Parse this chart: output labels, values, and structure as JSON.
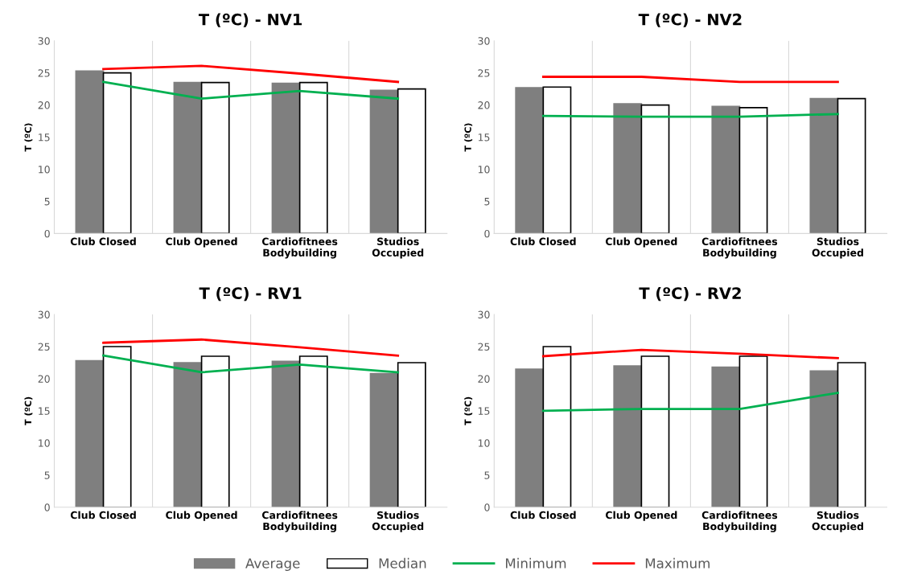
{
  "chart_data": [
    {
      "type": "bar",
      "title": "T (ºC) - NV1",
      "ylabel": "T (ºC)",
      "categories": [
        "Club Closed",
        "Club Opened",
        "Cardiofitnees\nBodybuilding",
        "Studios\nOccupied"
      ],
      "ylim": [
        0,
        30
      ],
      "yticks": [
        0,
        5,
        10,
        15,
        20,
        25,
        30
      ],
      "grid": "x",
      "legend": "bottom",
      "series": [
        {
          "name": "Average",
          "color": "#7f7f7f",
          "values": [
            25.3,
            23.5,
            23.4,
            22.3
          ]
        },
        {
          "name": "Median",
          "color": "#ffffff",
          "values": [
            25.0,
            23.5,
            23.5,
            22.5
          ]
        },
        {
          "name": "Minimum",
          "type": "line",
          "color": "#00b050",
          "values": [
            23.6,
            21.0,
            22.2,
            21.0
          ]
        },
        {
          "name": "Maximum",
          "type": "line",
          "color": "#ff0000",
          "values": [
            25.6,
            26.1,
            24.9,
            23.6
          ]
        }
      ]
    },
    {
      "type": "bar",
      "title": "T (ºC) - NV2",
      "ylabel": "T (ºC)",
      "categories": [
        "Club Closed",
        "Club Opened",
        "Cardiofitnees\nBodybuilding",
        "Studios\nOccupied"
      ],
      "ylim": [
        0,
        30
      ],
      "yticks": [
        0,
        5,
        10,
        15,
        20,
        25,
        30
      ],
      "grid": "x",
      "series": [
        {
          "color": "#7f7f7f",
          "values": [
            22.7,
            20.2,
            19.8,
            21.0
          ]
        },
        {
          "color": "#ffffff",
          "values": [
            22.8,
            20.0,
            19.6,
            21.0
          ]
        },
        {
          "type": "line",
          "color": "#00b050",
          "values": [
            18.3,
            18.2,
            18.2,
            18.6
          ]
        },
        {
          "type": "line",
          "color": "#ff0000",
          "values": [
            24.4,
            24.4,
            23.6,
            23.6
          ]
        }
      ]
    },
    {
      "type": "bar",
      "title": "T (ºC) - RV1",
      "ylabel": "T (ºC)",
      "categories": [
        "Club Closed",
        "Club Opened",
        "Cardiofitnees\nBodybuilding",
        "Studios\nOccupied"
      ],
      "ylim": [
        0,
        30
      ],
      "yticks": [
        0,
        5,
        10,
        15,
        20,
        25,
        30
      ],
      "grid": "x",
      "series": [
        {
          "color": "#7f7f7f",
          "values": [
            22.8,
            22.5,
            22.7,
            20.8
          ]
        },
        {
          "color": "#ffffff",
          "values": [
            25.0,
            23.5,
            23.5,
            22.5
          ]
        },
        {
          "type": "line",
          "color": "#00b050",
          "values": [
            23.6,
            21.0,
            22.2,
            21.0
          ]
        },
        {
          "type": "line",
          "color": "#ff0000",
          "values": [
            25.6,
            26.1,
            24.9,
            23.6
          ]
        }
      ]
    },
    {
      "type": "bar",
      "title": "T (ºC) - RV2",
      "ylabel": "T (ºC)",
      "categories": [
        "Club Closed",
        "Club Opened",
        "Cardiofitnees\nBodybuilding",
        "Studios\nOccupied"
      ],
      "ylim": [
        0,
        30
      ],
      "yticks": [
        0,
        5,
        10,
        15,
        20,
        25,
        30
      ],
      "grid": "x",
      "series": [
        {
          "color": "#7f7f7f",
          "values": [
            21.5,
            22.0,
            21.8,
            21.2
          ]
        },
        {
          "color": "#ffffff",
          "values": [
            25.0,
            23.5,
            23.5,
            22.5
          ]
        },
        {
          "type": "line",
          "color": "#00b050",
          "values": [
            15.0,
            15.3,
            15.3,
            17.8
          ]
        },
        {
          "type": "line",
          "color": "#ff0000",
          "values": [
            23.5,
            24.5,
            23.9,
            23.2
          ]
        }
      ]
    }
  ]
}
